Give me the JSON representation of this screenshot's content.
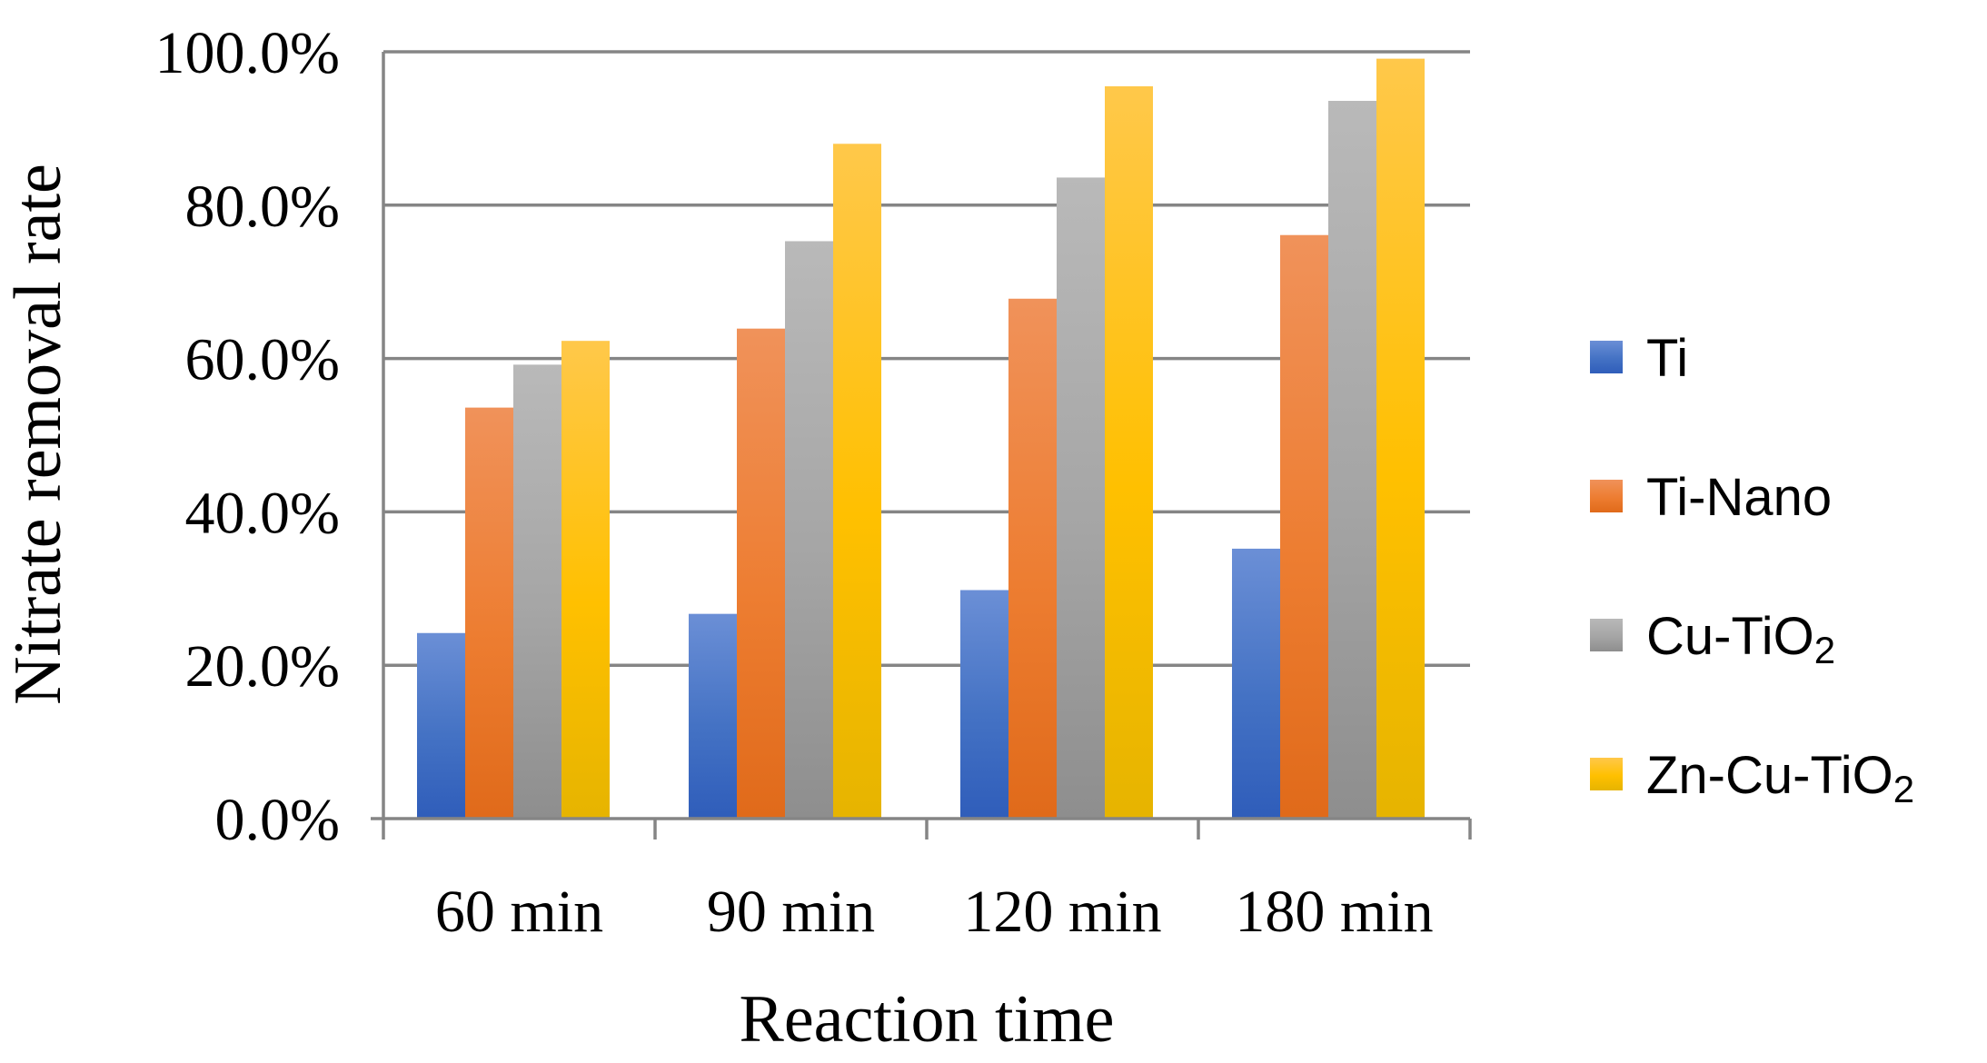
{
  "chart_data": {
    "type": "bar",
    "title": "",
    "xlabel": "Reaction time",
    "ylabel": "Nitrate removal rate",
    "categories": [
      "60 min",
      "90 min",
      "120 min",
      "180 min"
    ],
    "ylim": [
      0,
      100
    ],
    "yticks": [
      0,
      20,
      40,
      60,
      80,
      100
    ],
    "ytick_labels": [
      "0.0%",
      "20.0%",
      "40.0%",
      "60.0%",
      "80.0%",
      "100.0%"
    ],
    "grid": true,
    "legend_position": "right",
    "series": [
      {
        "name": "Ti",
        "base": "Ti",
        "sub": "",
        "color": "#4472C4",
        "color_light": "#6B8FD6",
        "color_dark": "#2F5DBA",
        "values": [
          24.2,
          26.7,
          29.8,
          35.2
        ]
      },
      {
        "name": "Ti-Nano",
        "base": "Ti-Nano",
        "sub": "",
        "color": "#ED7D31",
        "color_light": "#F0925A",
        "color_dark": "#E06A1A",
        "values": [
          53.6,
          63.9,
          67.8,
          76.1
        ]
      },
      {
        "name": "Cu-TiO2",
        "base": "Cu-TiO",
        "sub": "2",
        "color": "#A5A5A5",
        "color_light": "#B9B9B9",
        "color_dark": "#8E8E8E",
        "values": [
          59.2,
          75.3,
          83.6,
          93.6
        ]
      },
      {
        "name": "Zn-Cu-TiO2",
        "base": "Zn-Cu-TiO",
        "sub": "2",
        "color": "#FFC000",
        "color_light": "#FFC84A",
        "color_dark": "#E6B400",
        "values": [
          62.3,
          88.0,
          95.5,
          99.1
        ]
      }
    ]
  }
}
